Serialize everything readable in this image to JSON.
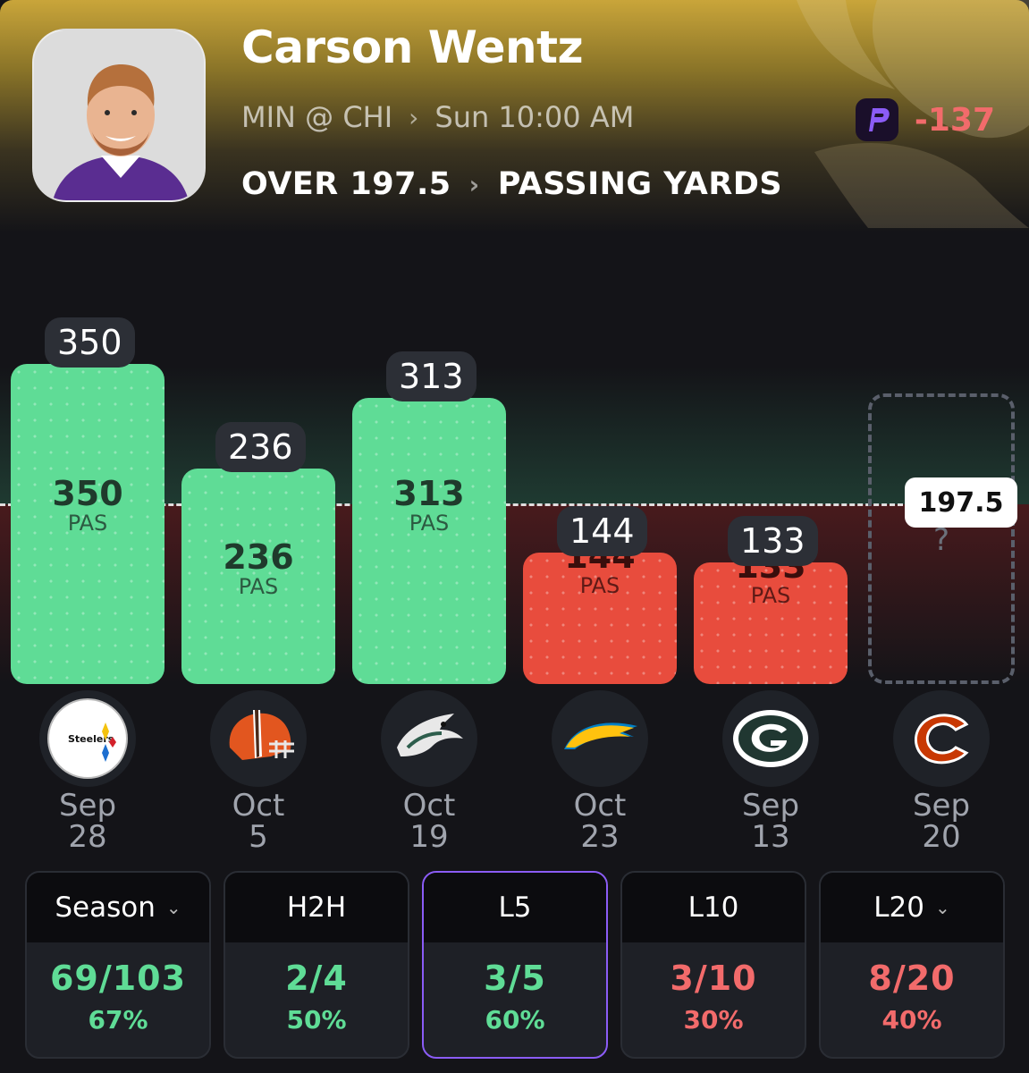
{
  "player": {
    "name": "Carson Wentz",
    "matchup": "MIN @ CHI",
    "game_time": "Sun 10:00 AM",
    "line": "OVER 197.5",
    "stat_type": "PASSING YARDS",
    "odds": "-137",
    "book_icon": "prizepicks-logo-icon",
    "team_icon": "vikings-horn-icon"
  },
  "chart_data": {
    "type": "bar",
    "categories": [
      "Sep 28",
      "Oct 5",
      "Oct 19",
      "Oct 23",
      "Sep 13",
      "Sep 20"
    ],
    "values": [
      350,
      236,
      313,
      144,
      133,
      null
    ],
    "unit_label": "PAS",
    "threshold": 197.5,
    "threshold_label": "197.5",
    "pending_label": "?",
    "colors": {
      "over": "#5fdc96",
      "under": "#e84c3d",
      "pending": "#5a5f6b"
    }
  },
  "games": [
    {
      "opponent_icon": "steelers-logo-icon",
      "month": "Sep",
      "day": "28",
      "value_label": "350",
      "unit": "PAS"
    },
    {
      "opponent_icon": "browns-helmet-icon",
      "month": "Oct",
      "day": "5",
      "value_label": "236",
      "unit": "PAS"
    },
    {
      "opponent_icon": "eagles-logo-icon",
      "month": "Oct",
      "day": "19",
      "value_label": "313",
      "unit": "PAS"
    },
    {
      "opponent_icon": "chargers-bolt-icon",
      "month": "Oct",
      "day": "23",
      "value_label": "144",
      "unit": "PAS"
    },
    {
      "opponent_icon": "packers-logo-icon",
      "month": "Sep",
      "day": "13",
      "value_label": "133",
      "unit": "PAS"
    },
    {
      "opponent_icon": "bears-logo-icon",
      "month": "Sep",
      "day": "20",
      "value_label": "?",
      "unit": ""
    }
  ],
  "splits": [
    {
      "label": "Season",
      "has_caret": true,
      "fraction": "69/103",
      "percent": "67%",
      "status": "good",
      "active": false
    },
    {
      "label": "H2H",
      "has_caret": false,
      "fraction": "2/4",
      "percent": "50%",
      "status": "good",
      "active": false
    },
    {
      "label": "L5",
      "has_caret": false,
      "fraction": "3/5",
      "percent": "60%",
      "status": "good",
      "active": true
    },
    {
      "label": "L10",
      "has_caret": false,
      "fraction": "3/10",
      "percent": "30%",
      "status": "bad",
      "active": false
    },
    {
      "label": "L20",
      "has_caret": true,
      "fraction": "8/20",
      "percent": "40%",
      "status": "bad",
      "active": false
    }
  ]
}
